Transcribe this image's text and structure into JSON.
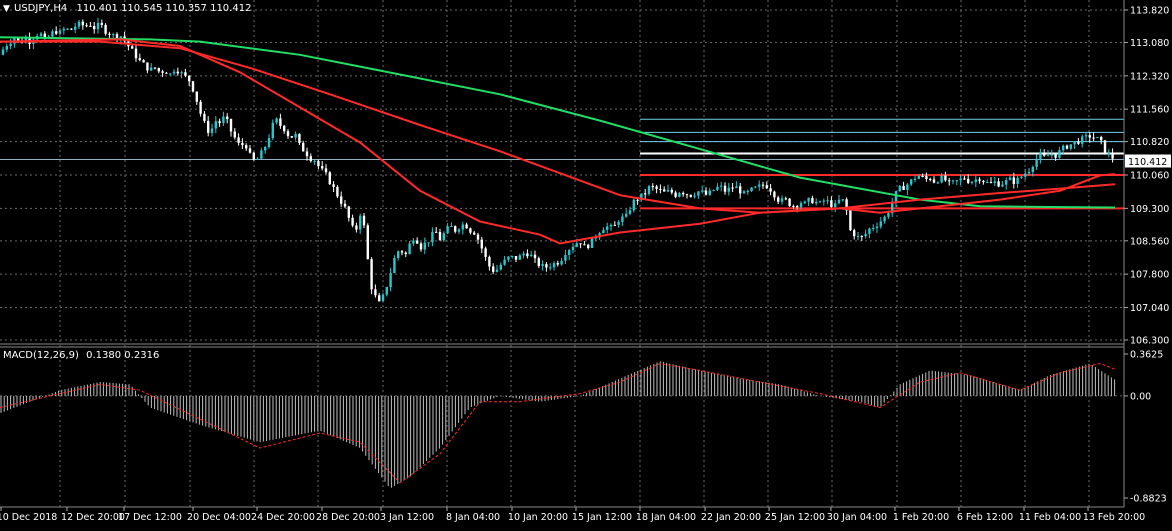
{
  "header": {
    "symbol_label": "USDJPY,H4",
    "ohlc": "110.401 110.545 110.357 110.412",
    "dropdown_glyph": "▼"
  },
  "macd": {
    "label": "MACD(12,26,9)",
    "values": "0.1380 0.2316"
  },
  "price_axis": {
    "ticks": [
      "113.820",
      "113.080",
      "112.320",
      "111.560",
      "110.820",
      "110.060",
      "109.300",
      "108.560",
      "107.800",
      "107.040",
      "106.300"
    ],
    "current_price": "110.412"
  },
  "macd_axis": {
    "ticks": [
      "0.3625",
      "0.00",
      "-0.8823"
    ]
  },
  "time_axis": {
    "labels": [
      "10 Dec 2018",
      "12 Dec 20:00",
      "17 Dec 12:00",
      "20 Dec 04:00",
      "24 Dec 20:00",
      "28 Dec 20:00",
      "3 Jan 12:00",
      "8 Jan 04:00",
      "10 Jan 20:00",
      "15 Jan 12:00",
      "18 Jan 04:00",
      "22 Jan 20:00",
      "25 Jan 12:00",
      "30 Jan 04:00",
      "1 Feb 20:00",
      "6 Feb 12:00",
      "11 Feb 04:00",
      "13 Feb 20:00"
    ]
  },
  "chart_data": {
    "type": "candlestick",
    "symbol": "USDJPY",
    "timeframe": "H4",
    "price_range": [
      106.3,
      113.82
    ],
    "close_path": [
      [
        0,
        112.8
      ],
      [
        5,
        113.0
      ],
      [
        10,
        113.1
      ],
      [
        15,
        113.2
      ],
      [
        20,
        113.05
      ],
      [
        25,
        113.2
      ],
      [
        30,
        113.1
      ],
      [
        35,
        113.25
      ],
      [
        40,
        113.3
      ],
      [
        45,
        113.1
      ],
      [
        50,
        113.25
      ],
      [
        55,
        113.35
      ],
      [
        60,
        113.3
      ],
      [
        65,
        113.4
      ],
      [
        70,
        113.35
      ],
      [
        75,
        113.45
      ],
      [
        80,
        113.5
      ],
      [
        85,
        113.45
      ],
      [
        90,
        113.5
      ],
      [
        95,
        113.4
      ],
      [
        100,
        113.5
      ],
      [
        105,
        113.35
      ],
      [
        110,
        113.3
      ],
      [
        115,
        113.2
      ],
      [
        120,
        113.25
      ],
      [
        125,
        113.1
      ],
      [
        130,
        112.95
      ],
      [
        135,
        112.8
      ],
      [
        140,
        112.65
      ],
      [
        145,
        112.55
      ],
      [
        150,
        112.45
      ],
      [
        155,
        112.5
      ],
      [
        160,
        112.4
      ],
      [
        165,
        112.45
      ],
      [
        170,
        112.35
      ],
      [
        175,
        112.5
      ],
      [
        180,
        112.4
      ],
      [
        185,
        112.3
      ],
      [
        190,
        112.2
      ],
      [
        195,
        111.9
      ],
      [
        200,
        111.5
      ],
      [
        205,
        111.2
      ],
      [
        210,
        111.0
      ],
      [
        215,
        111.3
      ],
      [
        220,
        111.25
      ],
      [
        225,
        111.4
      ],
      [
        230,
        111.1
      ],
      [
        235,
        110.9
      ],
      [
        240,
        110.7
      ],
      [
        245,
        110.8
      ],
      [
        250,
        110.5
      ],
      [
        255,
        110.35
      ],
      [
        260,
        110.5
      ],
      [
        265,
        110.7
      ],
      [
        270,
        111.0
      ],
      [
        275,
        111.35
      ],
      [
        280,
        111.2
      ],
      [
        285,
        111.1
      ],
      [
        290,
        110.9
      ],
      [
        295,
        111.0
      ],
      [
        300,
        110.7
      ],
      [
        305,
        110.6
      ],
      [
        310,
        110.45
      ],
      [
        315,
        110.4
      ],
      [
        320,
        110.2
      ],
      [
        325,
        110.1
      ],
      [
        330,
        109.9
      ],
      [
        335,
        109.7
      ],
      [
        340,
        109.5
      ],
      [
        345,
        109.3
      ],
      [
        350,
        109.0
      ],
      [
        355,
        108.7
      ],
      [
        360,
        109.2
      ],
      [
        365,
        108.8
      ],
      [
        370,
        107.6
      ],
      [
        375,
        107.3
      ],
      [
        380,
        107.1
      ],
      [
        385,
        107.4
      ],
      [
        390,
        107.8
      ],
      [
        395,
        108.2
      ],
      [
        400,
        108.4
      ],
      [
        405,
        108.2
      ],
      [
        410,
        108.5
      ],
      [
        415,
        108.7
      ],
      [
        420,
        108.4
      ],
      [
        425,
        108.5
      ],
      [
        430,
        108.6
      ],
      [
        435,
        108.8
      ],
      [
        440,
        108.6
      ],
      [
        445,
        108.75
      ],
      [
        450,
        108.9
      ],
      [
        455,
        108.8
      ],
      [
        460,
        108.9
      ],
      [
        465,
        108.95
      ],
      [
        470,
        108.8
      ],
      [
        475,
        108.75
      ],
      [
        480,
        108.5
      ],
      [
        485,
        108.2
      ],
      [
        490,
        107.95
      ],
      [
        495,
        107.85
      ],
      [
        500,
        108.0
      ],
      [
        505,
        108.1
      ],
      [
        510,
        108.2
      ],
      [
        515,
        108.15
      ],
      [
        520,
        108.2
      ],
      [
        525,
        108.3
      ],
      [
        530,
        108.25
      ],
      [
        535,
        108.1
      ],
      [
        540,
        108.0
      ],
      [
        545,
        107.95
      ],
      [
        550,
        108.0
      ],
      [
        555,
        108.05
      ],
      [
        560,
        108.1
      ],
      [
        565,
        108.3
      ],
      [
        570,
        108.4
      ],
      [
        575,
        108.5
      ],
      [
        580,
        108.55
      ],
      [
        585,
        108.4
      ],
      [
        590,
        108.5
      ],
      [
        595,
        108.65
      ],
      [
        600,
        108.8
      ],
      [
        605,
        108.9
      ],
      [
        610,
        108.85
      ],
      [
        615,
        108.9
      ],
      [
        620,
        109.1
      ],
      [
        625,
        109.05
      ],
      [
        630,
        109.3
      ],
      [
        635,
        109.5
      ],
      [
        640,
        109.55
      ],
      [
        645,
        109.65
      ],
      [
        650,
        109.8
      ],
      [
        655,
        109.75
      ],
      [
        660,
        109.7
      ],
      [
        665,
        109.65
      ],
      [
        670,
        109.7
      ],
      [
        675,
        109.6
      ],
      [
        680,
        109.7
      ],
      [
        685,
        109.65
      ],
      [
        690,
        109.6
      ],
      [
        695,
        109.65
      ],
      [
        700,
        109.7
      ],
      [
        705,
        109.6
      ],
      [
        710,
        109.65
      ],
      [
        715,
        109.75
      ],
      [
        720,
        109.8
      ],
      [
        725,
        109.7
      ],
      [
        730,
        109.75
      ],
      [
        735,
        109.8
      ],
      [
        740,
        109.7
      ],
      [
        745,
        109.6
      ],
      [
        750,
        109.7
      ],
      [
        755,
        109.75
      ],
      [
        760,
        109.8
      ],
      [
        765,
        109.85
      ],
      [
        770,
        109.75
      ],
      [
        775,
        109.6
      ],
      [
        780,
        109.45
      ],
      [
        785,
        109.5
      ],
      [
        790,
        109.4
      ],
      [
        795,
        109.35
      ],
      [
        800,
        109.45
      ],
      [
        805,
        109.4
      ],
      [
        810,
        109.5
      ],
      [
        815,
        109.45
      ],
      [
        820,
        109.4
      ],
      [
        825,
        109.5
      ],
      [
        830,
        109.4
      ],
      [
        835,
        109.35
      ],
      [
        840,
        109.5
      ],
      [
        845,
        109.45
      ],
      [
        850,
        108.8
      ],
      [
        855,
        108.7
      ],
      [
        860,
        108.6
      ],
      [
        865,
        108.7
      ],
      [
        870,
        108.85
      ],
      [
        875,
        108.9
      ],
      [
        880,
        109.0
      ],
      [
        885,
        109.1
      ],
      [
        890,
        109.3
      ],
      [
        895,
        109.6
      ],
      [
        900,
        109.75
      ],
      [
        905,
        109.8
      ],
      [
        910,
        109.9
      ],
      [
        915,
        110.0
      ],
      [
        920,
        110.05
      ],
      [
        925,
        109.95
      ],
      [
        930,
        110.0
      ],
      [
        935,
        109.9
      ],
      [
        940,
        110.0
      ],
      [
        945,
        109.95
      ],
      [
        950,
        109.85
      ],
      [
        955,
        109.9
      ],
      [
        960,
        109.95
      ],
      [
        965,
        110.0
      ],
      [
        970,
        109.9
      ],
      [
        975,
        109.95
      ],
      [
        980,
        110.0
      ],
      [
        985,
        109.9
      ],
      [
        990,
        109.85
      ],
      [
        995,
        109.9
      ],
      [
        1000,
        109.85
      ],
      [
        1005,
        109.9
      ],
      [
        1010,
        109.95
      ],
      [
        1015,
        109.9
      ],
      [
        1020,
        110.0
      ],
      [
        1025,
        110.1
      ],
      [
        1030,
        110.2
      ],
      [
        1035,
        110.4
      ],
      [
        1040,
        110.5
      ],
      [
        1045,
        110.45
      ],
      [
        1050,
        110.55
      ],
      [
        1055,
        110.5
      ],
      [
        1060,
        110.6
      ],
      [
        1065,
        110.7
      ],
      [
        1070,
        110.75
      ],
      [
        1075,
        110.8
      ],
      [
        1080,
        110.85
      ],
      [
        1085,
        110.9
      ],
      [
        1090,
        110.95
      ],
      [
        1095,
        110.9
      ],
      [
        1100,
        110.85
      ],
      [
        1105,
        110.6
      ],
      [
        1110,
        110.5
      ],
      [
        1115,
        110.412
      ]
    ],
    "moving_averages": [
      {
        "color": "#22dd66",
        "points": [
          [
            0,
            113.2
          ],
          [
            150,
            113.15
          ],
          [
            200,
            113.1
          ],
          [
            300,
            112.8
          ],
          [
            400,
            112.35
          ],
          [
            500,
            111.9
          ],
          [
            600,
            111.3
          ],
          [
            700,
            110.65
          ],
          [
            800,
            110.0
          ],
          [
            860,
            109.75
          ],
          [
            920,
            109.5
          ],
          [
            980,
            109.35
          ],
          [
            1050,
            109.33
          ],
          [
            1115,
            109.32
          ]
        ]
      },
      {
        "color": "#ff2a2a",
        "points": [
          [
            0,
            113.1
          ],
          [
            100,
            113.1
          ],
          [
            180,
            112.95
          ],
          [
            250,
            112.5
          ],
          [
            330,
            111.9
          ],
          [
            420,
            111.2
          ],
          [
            500,
            110.6
          ],
          [
            560,
            110.1
          ],
          [
            620,
            109.6
          ],
          [
            700,
            109.3
          ],
          [
            760,
            109.2
          ],
          [
            840,
            109.3
          ],
          [
            920,
            109.5
          ],
          [
            1000,
            109.65
          ],
          [
            1060,
            109.75
          ],
          [
            1115,
            109.85
          ]
        ]
      },
      {
        "color": "#ff2a2a",
        "points": [
          [
            0,
            113.1
          ],
          [
            120,
            113.15
          ],
          [
            180,
            113.0
          ],
          [
            240,
            112.4
          ],
          [
            300,
            111.6
          ],
          [
            360,
            110.8
          ],
          [
            420,
            109.7
          ],
          [
            480,
            109.0
          ],
          [
            540,
            108.7
          ],
          [
            560,
            108.5
          ],
          [
            620,
            108.75
          ],
          [
            700,
            108.95
          ],
          [
            760,
            109.2
          ],
          [
            840,
            109.3
          ],
          [
            880,
            109.2
          ],
          [
            940,
            109.35
          ],
          [
            1000,
            109.5
          ],
          [
            1060,
            109.7
          ],
          [
            1100,
            110.05
          ],
          [
            1115,
            110.08
          ]
        ]
      }
    ],
    "horizontal_levels": [
      {
        "price": 111.33,
        "color": "#6fd3e8",
        "from_x": 640
      },
      {
        "price": 111.03,
        "color": "#6fd3e8",
        "from_x": 640
      },
      {
        "price": 110.82,
        "color": "#6fd3e8",
        "from_x": 640
      },
      {
        "price": 110.55,
        "color": "#ffffff",
        "from_x": 640
      },
      {
        "price": 110.412,
        "color": "#8fb0c0",
        "from_x": 0
      },
      {
        "price": 110.06,
        "color": "#ff2a2a",
        "from_x": 640
      },
      {
        "price": 109.3,
        "color": "#ff2a2a",
        "from_x": 640
      }
    ],
    "macd_range": [
      -0.8823,
      0.3625
    ],
    "macd_histogram_path": [
      [
        0,
        -0.15
      ],
      [
        60,
        0.05
      ],
      [
        100,
        0.12
      ],
      [
        130,
        0.1
      ],
      [
        150,
        -0.1
      ],
      [
        200,
        -0.25
      ],
      [
        260,
        -0.4
      ],
      [
        320,
        -0.3
      ],
      [
        360,
        -0.45
      ],
      [
        390,
        -0.8
      ],
      [
        410,
        -0.7
      ],
      [
        440,
        -0.45
      ],
      [
        470,
        -0.1
      ],
      [
        500,
        0.0
      ],
      [
        540,
        -0.05
      ],
      [
        580,
        0.0
      ],
      [
        620,
        0.15
      ],
      [
        660,
        0.3
      ],
      [
        700,
        0.22
      ],
      [
        740,
        0.15
      ],
      [
        780,
        0.1
      ],
      [
        820,
        0.0
      ],
      [
        860,
        -0.05
      ],
      [
        880,
        -0.1
      ],
      [
        900,
        0.1
      ],
      [
        930,
        0.22
      ],
      [
        970,
        0.18
      ],
      [
        1020,
        0.05
      ],
      [
        1050,
        0.18
      ],
      [
        1090,
        0.28
      ],
      [
        1115,
        0.14
      ]
    ],
    "macd_signal_path": [
      [
        0,
        -0.1
      ],
      [
        60,
        0.02
      ],
      [
        100,
        0.1
      ],
      [
        140,
        0.05
      ],
      [
        200,
        -0.2
      ],
      [
        260,
        -0.45
      ],
      [
        320,
        -0.32
      ],
      [
        360,
        -0.4
      ],
      [
        400,
        -0.75
      ],
      [
        440,
        -0.5
      ],
      [
        480,
        -0.05
      ],
      [
        520,
        -0.05
      ],
      [
        580,
        0.02
      ],
      [
        620,
        0.12
      ],
      [
        660,
        0.28
      ],
      [
        700,
        0.22
      ],
      [
        760,
        0.12
      ],
      [
        820,
        0.02
      ],
      [
        880,
        -0.1
      ],
      [
        920,
        0.12
      ],
      [
        960,
        0.2
      ],
      [
        1020,
        0.05
      ],
      [
        1060,
        0.2
      ],
      [
        1100,
        0.28
      ],
      [
        1115,
        0.23
      ]
    ]
  },
  "colors": {
    "background": "#000000",
    "grid": "#6a6a6a",
    "bull_candle": "#26c7cf",
    "bear_candle": "#ffffff",
    "macd_histogram": "#bfbfbf",
    "macd_signal": "#ff2a2a",
    "text": "#ffffff",
    "price_tag_bg": "#ffffff",
    "price_tag_text": "#000000"
  }
}
